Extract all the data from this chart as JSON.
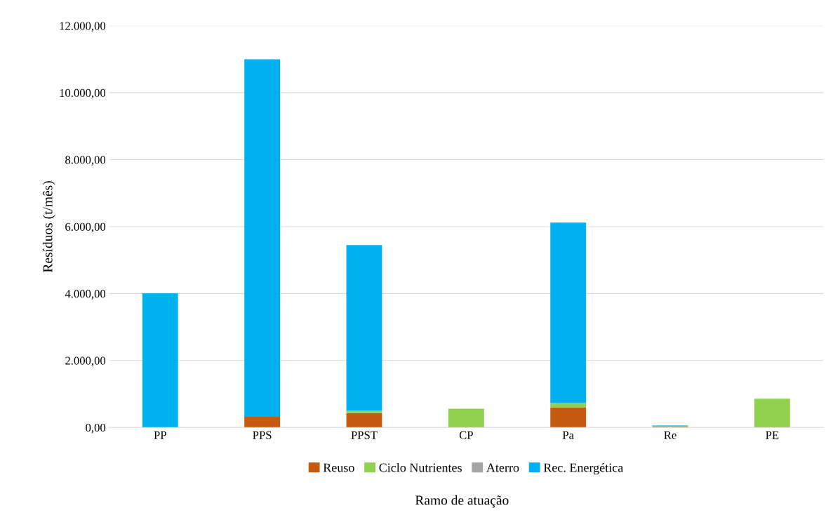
{
  "chart_data": {
    "type": "bar",
    "stacked": true,
    "xlabel": "Ramo de atuação",
    "ylabel": "Resíduos (t/mês)",
    "categories": [
      "PP",
      "PPS",
      "PPST",
      "CP",
      "Pa",
      "Re",
      "PE"
    ],
    "series": [
      {
        "name": "Reuso",
        "color": "#c55a11",
        "values": [
          0,
          320,
          430,
          0,
          600,
          20,
          0
        ]
      },
      {
        "name": "Ciclo Nutrientes",
        "color": "#92d050",
        "values": [
          0,
          0,
          80,
          560,
          130,
          30,
          860
        ]
      },
      {
        "name": "Aterro",
        "color": "#a5a5a5",
        "values": [
          0,
          0,
          0,
          0,
          0,
          0,
          0
        ]
      },
      {
        "name": "Rec. Energética",
        "color": "#00b0f0",
        "values": [
          4010,
          10680,
          4940,
          0,
          5390,
          10,
          0
        ]
      }
    ],
    "ylim": [
      0,
      12000
    ],
    "yticks": [
      {
        "value": 0,
        "label": "0,00"
      },
      {
        "value": 2000,
        "label": "2.000,00"
      },
      {
        "value": 4000,
        "label": "4.000,00"
      },
      {
        "value": 6000,
        "label": "6.000,00"
      },
      {
        "value": 8000,
        "label": "8.000,00"
      },
      {
        "value": 10000,
        "label": "10.000,00"
      },
      {
        "value": 12000,
        "label": "12.000,00"
      }
    ],
    "grid": "y",
    "legend": "bottom"
  }
}
